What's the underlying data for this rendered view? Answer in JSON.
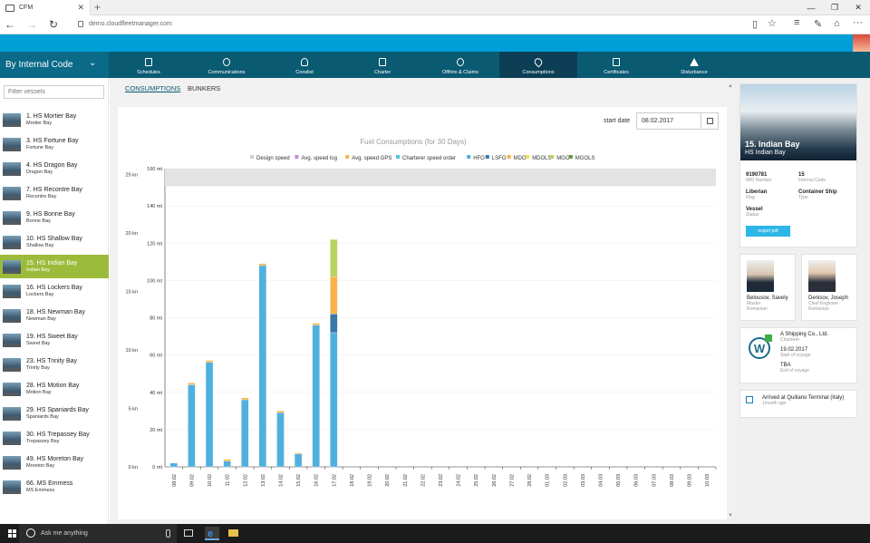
{
  "browser": {
    "tab_title": "CFM",
    "url": "demo.cloudfleetmanager.com",
    "new_tab": "+",
    "close_tab": "✕"
  },
  "header": {
    "group_by": "By Internal Code",
    "nav": [
      {
        "label": "Schedules"
      },
      {
        "label": "Communications"
      },
      {
        "label": "Crewlist"
      },
      {
        "label": "Charter"
      },
      {
        "label": "Offhire & Claims"
      },
      {
        "label": "Consumptions"
      },
      {
        "label": "Certificates"
      },
      {
        "label": "Disturbance"
      }
    ],
    "active_nav": "Consumptions"
  },
  "sidebar": {
    "filter_placeholder": "Filter vessels",
    "vessels": [
      {
        "name": "1. HS Mortier Bay",
        "sub": "Mortier Bay"
      },
      {
        "name": "3. HS Fortune Bay",
        "sub": "Fortune Bay"
      },
      {
        "name": "4. HS Dragon Bay",
        "sub": "Dragon Bay"
      },
      {
        "name": "7. HS Recontre Bay",
        "sub": "Recontre Bay"
      },
      {
        "name": "9. HS Bonne Bay",
        "sub": "Bonne Bay"
      },
      {
        "name": "10. HS Shallow Bay",
        "sub": "Shallow Bay"
      },
      {
        "name": "15. HS Indian Bay",
        "sub": "Indian Bay"
      },
      {
        "name": "16. HS Lockers Bay",
        "sub": "Lockers Bay"
      },
      {
        "name": "18. HS Newman Bay",
        "sub": "Newman Bay"
      },
      {
        "name": "19. HS Sweet Bay",
        "sub": "Sweet Bay"
      },
      {
        "name": "23. HS Trinity Bay",
        "sub": "Trinity Bay"
      },
      {
        "name": "28. HS Motion Bay",
        "sub": "Motion Bay"
      },
      {
        "name": "29. HS Spaniards Bay",
        "sub": "Spaniards Bay"
      },
      {
        "name": "30. HS Trepassey Bay",
        "sub": "Trepassey Bay"
      },
      {
        "name": "49. HS Moreton Bay",
        "sub": "Moreton Bay"
      },
      {
        "name": "66. MS Emmess",
        "sub": "MS Emmess"
      }
    ],
    "active_index": 6
  },
  "main": {
    "tabs": [
      {
        "label": "CONSUMPTIONS"
      },
      {
        "label": "BUNKERS"
      }
    ],
    "active_tab": "CONSUMPTIONS",
    "start_date_label": "start date",
    "start_date_value": "08.02.2017"
  },
  "chart_data": {
    "type": "bar",
    "title": "Fuel Consumptions (for 30 Days)",
    "legend": [
      {
        "name": "Design speed",
        "color": "#cfcfcf"
      },
      {
        "name": "Avg. speed log",
        "color": "#c38bd6"
      },
      {
        "name": "Avg. speed GPS",
        "color": "#f7b34a"
      },
      {
        "name": "Charterer speed order",
        "color": "#4ec6d8"
      },
      {
        "name": "HFO",
        "color": "#4fb0e0"
      },
      {
        "name": "LSFO",
        "color": "#3a77a9"
      },
      {
        "name": "MDO",
        "color": "#f7b34a"
      },
      {
        "name": "MDOLS",
        "color": "#f2e24e"
      },
      {
        "name": "MGO",
        "color": "#b7d360"
      },
      {
        "name": "MGOLS",
        "color": "#5f9a3c"
      }
    ],
    "legend_position": "top",
    "y_left": {
      "ticks": [
        "0 mt",
        "20 mt",
        "40 mt",
        "60 mt",
        "80 mt",
        "100 mt",
        "120 mt",
        "140 mt",
        "160 mt"
      ],
      "ylim": [
        0,
        160
      ],
      "unit": "mt"
    },
    "y_right": {
      "ticks": [
        "0 kn",
        "5 kn",
        "10 kn",
        "15 kn",
        "20 kn",
        "25 kn"
      ],
      "ylim": [
        0,
        25
      ],
      "unit": "kn"
    },
    "design_speed_band_kn": [
      24,
      25.5
    ],
    "categories": [
      "08.02",
      "09.02",
      "10.02",
      "11.02",
      "12.02",
      "13.02",
      "14.02",
      "15.02",
      "16.02",
      "17.02",
      "18.02",
      "19.02",
      "20.02",
      "21.02",
      "22.02",
      "23.02",
      "24.02",
      "25.02",
      "26.02",
      "27.02",
      "28.02",
      "01.03",
      "02.03",
      "03.03",
      "04.03",
      "05.03",
      "06.03",
      "07.03",
      "08.03",
      "09.03",
      "10.03"
    ],
    "series": [
      {
        "name": "HFO",
        "values": [
          2,
          44,
          56,
          3,
          36,
          108,
          29,
          7,
          76,
          72,
          0,
          0,
          0,
          0,
          0,
          0,
          0,
          0,
          0,
          0,
          0,
          0,
          0,
          0,
          0,
          0,
          0,
          0,
          0,
          0,
          0
        ]
      },
      {
        "name": "LSFO",
        "values": [
          0,
          0,
          0,
          0,
          0,
          0,
          0,
          0,
          0,
          10,
          0,
          0,
          0,
          0,
          0,
          0,
          0,
          0,
          0,
          0,
          0,
          0,
          0,
          0,
          0,
          0,
          0,
          0,
          0,
          0,
          0
        ]
      },
      {
        "name": "MDO",
        "values": [
          0,
          1,
          1,
          1,
          1,
          1,
          1,
          0.5,
          1,
          20,
          0,
          0,
          0,
          0,
          0,
          0,
          0,
          0,
          0,
          0,
          0,
          0,
          0,
          0,
          0,
          0,
          0,
          0,
          0,
          0,
          0
        ]
      },
      {
        "name": "MGO",
        "values": [
          0,
          0,
          0,
          0,
          0,
          0,
          0,
          0,
          0,
          20,
          0,
          0,
          0,
          0,
          0,
          0,
          0,
          0,
          0,
          0,
          0,
          0,
          0,
          0,
          0,
          0,
          0,
          0,
          0,
          0,
          0
        ]
      }
    ],
    "grid": true
  },
  "vessel_card": {
    "name": "15. Indian Bay",
    "subname": "HS Indian Bay",
    "fields": [
      {
        "value": "9190781",
        "label": "IMO Number"
      },
      {
        "value": "15",
        "label": "Internal Code"
      },
      {
        "value": "Liberian",
        "label": "Flag"
      },
      {
        "value": "Container Ship",
        "label": "Type"
      },
      {
        "value": "Vessel",
        "label": "Status"
      }
    ],
    "export_label": "export pdf"
  },
  "crew": [
    {
      "name": "Belousov, Savely",
      "role": "Master",
      "nationality": "Romanian"
    },
    {
      "name": "Denisov, Joseph",
      "role": "Chief Engineer",
      "nationality": "Romanian"
    }
  ],
  "charter": {
    "logo_letter": "W",
    "company": "A Shipping Co., Ltd.",
    "company_label": "Charterer",
    "start": "19.02.2017",
    "start_label": "Start of voyage",
    "end": "TBA",
    "end_label": "End of voyage"
  },
  "event": {
    "text": "Arrived at Quiliano Terminal (Italy)",
    "time": "1month ago"
  },
  "taskbar": {
    "search_placeholder": "Ask me anything"
  }
}
